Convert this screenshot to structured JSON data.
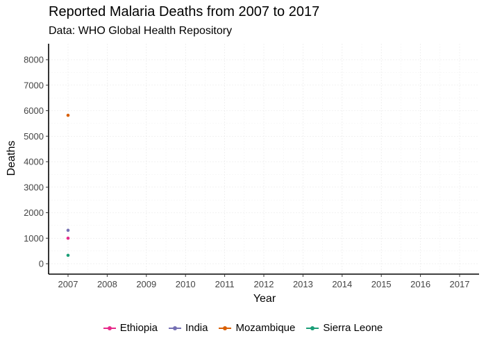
{
  "chart_data": {
    "type": "line",
    "title": "Reported Malaria Deaths from 2007 to 2017",
    "subtitle": "Data: WHO Global Health Repository",
    "xlabel": "Year",
    "ylabel": "Deaths",
    "xlim": [
      2007,
      2017
    ],
    "ylim": [
      0,
      8000
    ],
    "x_ticks": [
      "2007",
      "2008",
      "2009",
      "2010",
      "2011",
      "2012",
      "2013",
      "2014",
      "2015",
      "2016",
      "2017"
    ],
    "y_ticks": [
      "0",
      "1000",
      "2000",
      "3000",
      "4000",
      "5000",
      "6000",
      "7000",
      "8000"
    ],
    "grid": true,
    "legend_position": "bottom",
    "series": [
      {
        "name": "Ethiopia",
        "color": "#e7298a",
        "points": [
          {
            "x": 2007,
            "y": 1000
          }
        ]
      },
      {
        "name": "India",
        "color": "#7570b3",
        "points": [
          {
            "x": 2007,
            "y": 1310
          }
        ]
      },
      {
        "name": "Mozambique",
        "color": "#d95f02",
        "points": [
          {
            "x": 2007,
            "y": 5820
          }
        ]
      },
      {
        "name": "Sierra Leone",
        "color": "#1b9e77",
        "points": [
          {
            "x": 2007,
            "y": 330
          }
        ]
      }
    ]
  }
}
